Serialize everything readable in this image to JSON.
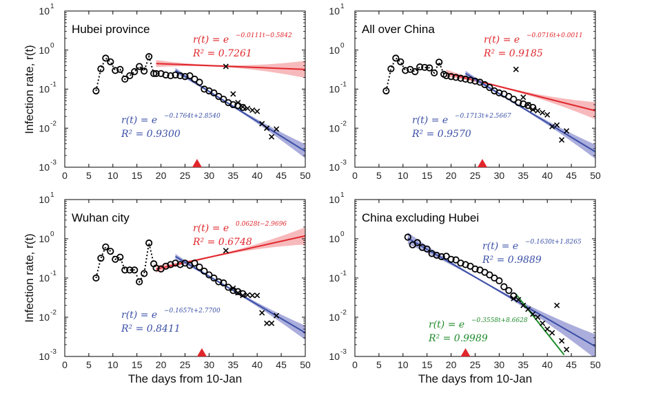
{
  "figure": {
    "ylabel": "Infection rate, r(t)",
    "xlabel": "The days from 10-Jan"
  },
  "colors": {
    "red": "#e0262b",
    "red_band": "#f4a3a6",
    "blue": "#3a4fa6",
    "blue_band": "#8f93d0",
    "green": "#1e8a2a",
    "marker_triangle": "#e0262b",
    "data": "#000000"
  },
  "chart_data": [
    {
      "type": "scatter",
      "title": "Hubei province",
      "xlim": [
        0,
        50
      ],
      "ylim": [
        0.001,
        10
      ],
      "yscale": "log",
      "xticks": [
        0,
        5,
        10,
        15,
        20,
        25,
        30,
        35,
        40,
        45,
        50
      ],
      "yticks": [
        "10-3",
        "10-2",
        "10-1",
        "100",
        "101"
      ],
      "triangle_x": 27.5,
      "series": [
        {
          "marker": "circle-dotted",
          "x": [
            6.5,
            7.5,
            8.5,
            9.5,
            10.5,
            11.5,
            12.5,
            13.5,
            14.5,
            15.5,
            16.5,
            17.5,
            18.5
          ],
          "y": [
            0.09,
            0.33,
            0.62,
            0.5,
            0.3,
            0.32,
            0.18,
            0.22,
            0.28,
            0.38,
            0.29,
            0.68,
            0.25
          ]
        },
        {
          "marker": "circle",
          "x": [
            19,
            20,
            21,
            22,
            23,
            24,
            25,
            26,
            27,
            28,
            29,
            30,
            31,
            32,
            33,
            34,
            35,
            36,
            37
          ],
          "y": [
            0.25,
            0.25,
            0.23,
            0.22,
            0.23,
            0.22,
            0.21,
            0.22,
            0.18,
            0.15,
            0.1,
            0.09,
            0.08,
            0.065,
            0.055,
            0.045,
            0.04,
            0.038,
            0.034
          ]
        },
        {
          "marker": "x",
          "x": [
            33.5,
            35,
            36,
            37,
            38,
            39,
            40,
            41,
            42,
            43,
            44
          ],
          "y": [
            0.38,
            0.075,
            0.045,
            0.035,
            0.032,
            0.029,
            0.027,
            0.013,
            0.01,
            0.006,
            0.0095
          ]
        }
      ],
      "fits": [
        {
          "equation_exp": "−0.0111t−0.5842",
          "r2_label": "R² = 0.7261",
          "a": -0.0111,
          "b": -0.5842,
          "x_range": [
            19,
            50
          ],
          "color": "red"
        },
        {
          "equation_exp": "−0.1764t+2.8540",
          "r2_label": "R² = 0.9300",
          "a": -0.1764,
          "b": 2.854,
          "x_range": [
            23,
            50
          ],
          "color": "blue"
        }
      ]
    },
    {
      "type": "scatter",
      "title": "All over China",
      "xlim": [
        0,
        50
      ],
      "ylim": [
        0.001,
        10
      ],
      "yscale": "log",
      "xticks": [
        0,
        5,
        10,
        15,
        20,
        25,
        30,
        35,
        40,
        45,
        50
      ],
      "yticks": [
        "10-3",
        "10-2",
        "10-1",
        "100",
        "101"
      ],
      "triangle_x": 26.5,
      "series": [
        {
          "marker": "circle-dotted",
          "x": [
            6.5,
            7.5,
            8.5,
            9.5,
            10.5,
            11.5,
            12.5,
            13.5,
            14.5,
            15.5,
            16.5,
            17.5,
            18.5
          ],
          "y": [
            0.09,
            0.33,
            0.62,
            0.5,
            0.3,
            0.32,
            0.28,
            0.37,
            0.36,
            0.35,
            0.26,
            0.49,
            0.24
          ]
        },
        {
          "marker": "circle",
          "x": [
            19,
            20,
            21,
            22,
            23,
            24,
            25,
            26,
            27,
            28,
            29,
            30,
            31,
            32,
            33,
            34,
            35,
            36,
            37
          ],
          "y": [
            0.22,
            0.21,
            0.2,
            0.19,
            0.18,
            0.17,
            0.16,
            0.15,
            0.13,
            0.11,
            0.09,
            0.08,
            0.075,
            0.065,
            0.055,
            0.045,
            0.042,
            0.038,
            0.034
          ]
        },
        {
          "marker": "x",
          "x": [
            33.5,
            35,
            36,
            37,
            38,
            39,
            40,
            41,
            42,
            43,
            44
          ],
          "y": [
            0.32,
            0.062,
            0.04,
            0.03,
            0.028,
            0.025,
            0.022,
            0.011,
            0.012,
            0.005,
            0.0085
          ]
        }
      ],
      "fits": [
        {
          "equation_exp": "−0.0716t+0.0011",
          "r2_label": "R² = 0.9185",
          "a": -0.0716,
          "b": 0.0011,
          "x_range": [
            19,
            50
          ],
          "color": "red",
          "note": "band drawn; line slope per figure"
        },
        {
          "equation_exp": "−0.1713t+2.5667",
          "r2_label": "R² = 0.9570",
          "a": -0.1713,
          "b": 2.5667,
          "x_range": [
            23,
            50
          ],
          "color": "blue"
        }
      ]
    },
    {
      "type": "scatter",
      "title": "Wuhan city",
      "xlim": [
        0,
        50
      ],
      "ylim": [
        0.001,
        10
      ],
      "yscale": "log",
      "xticks": [
        0,
        5,
        10,
        15,
        20,
        25,
        30,
        35,
        40,
        45,
        50
      ],
      "yticks": [
        "10-3",
        "10-2",
        "10-1",
        "100",
        "101"
      ],
      "triangle_x": 28.5,
      "series": [
        {
          "marker": "circle-dotted",
          "x": [
            6.5,
            7.5,
            8.5,
            9.5,
            10.5,
            11.5,
            12.5,
            13.5,
            14.5,
            15.5,
            16.5,
            17.5,
            18.5
          ],
          "y": [
            0.1,
            0.32,
            0.62,
            0.48,
            0.3,
            0.34,
            0.16,
            0.16,
            0.16,
            0.08,
            0.13,
            0.78,
            0.23
          ]
        },
        {
          "marker": "circle",
          "x": [
            19,
            20,
            21,
            22,
            23,
            24,
            25,
            26,
            27,
            28,
            29,
            30,
            31,
            32,
            33,
            34,
            35,
            36,
            37
          ],
          "y": [
            0.18,
            0.17,
            0.2,
            0.22,
            0.24,
            0.22,
            0.24,
            0.21,
            0.24,
            0.19,
            0.15,
            0.12,
            0.1,
            0.08,
            0.075,
            0.058,
            0.048,
            0.045,
            0.04
          ]
        },
        {
          "marker": "x",
          "x": [
            33.5,
            35,
            36,
            37,
            38,
            39,
            40,
            41,
            42,
            43,
            44
          ],
          "y": [
            0.5,
            0.055,
            0.042,
            0.036,
            0.037,
            0.036,
            0.036,
            0.013,
            0.007,
            0.007,
            0.011
          ]
        }
      ],
      "fits": [
        {
          "equation_exp": "0.0628t−2.9696",
          "r2_label": "R² = 0.6748",
          "a": 0.0628,
          "b": -2.9696,
          "x_range": [
            19,
            50
          ],
          "color": "red"
        },
        {
          "equation_exp": "−0.1657t+2.7700",
          "r2_label": "R² = 0.8411",
          "a": -0.1657,
          "b": 2.77,
          "x_range": [
            23,
            50
          ],
          "color": "blue"
        }
      ]
    },
    {
      "type": "scatter",
      "title": "China excluding Hubei",
      "xlim": [
        0,
        50
      ],
      "ylim": [
        0.001,
        10
      ],
      "yscale": "log",
      "xticks": [
        0,
        5,
        10,
        15,
        20,
        25,
        30,
        35,
        40,
        45,
        50
      ],
      "yticks": [
        "10-3",
        "10-2",
        "10-1",
        "100",
        "101"
      ],
      "triangle_x": 23,
      "series": [
        {
          "marker": "circle",
          "x": [
            11,
            12,
            13,
            14,
            15,
            16,
            17,
            18,
            19,
            20,
            21,
            22,
            23,
            24,
            25,
            26,
            27,
            28,
            29,
            30,
            31,
            32,
            33
          ],
          "y": [
            1.1,
            0.7,
            0.8,
            0.6,
            0.55,
            0.42,
            0.38,
            0.35,
            0.36,
            0.3,
            0.29,
            0.24,
            0.22,
            0.2,
            0.17,
            0.16,
            0.14,
            0.12,
            0.1,
            0.085,
            0.06,
            0.048,
            0.035
          ]
        },
        {
          "marker": "x",
          "x": [
            33,
            34,
            35,
            36,
            37,
            38,
            39,
            40,
            41,
            42,
            43,
            44
          ],
          "y": [
            0.03,
            0.028,
            0.02,
            0.016,
            0.012,
            0.01,
            0.007,
            0.005,
            0.004,
            0.02,
            0.0025,
            0.0015
          ]
        }
      ],
      "fits": [
        {
          "equation_exp": "−0.1630t+1.8265",
          "r2_label": "R² = 0.9889",
          "a": -0.163,
          "b": 1.8265,
          "x_range": [
            11,
            50
          ],
          "color": "blue"
        },
        {
          "equation_exp": "−0.3558t+8.6628",
          "r2_label": "R² = 0.9989",
          "a": -0.3558,
          "b": 8.6628,
          "x_range": [
            33.5,
            43.5
          ],
          "color": "green"
        }
      ]
    }
  ]
}
